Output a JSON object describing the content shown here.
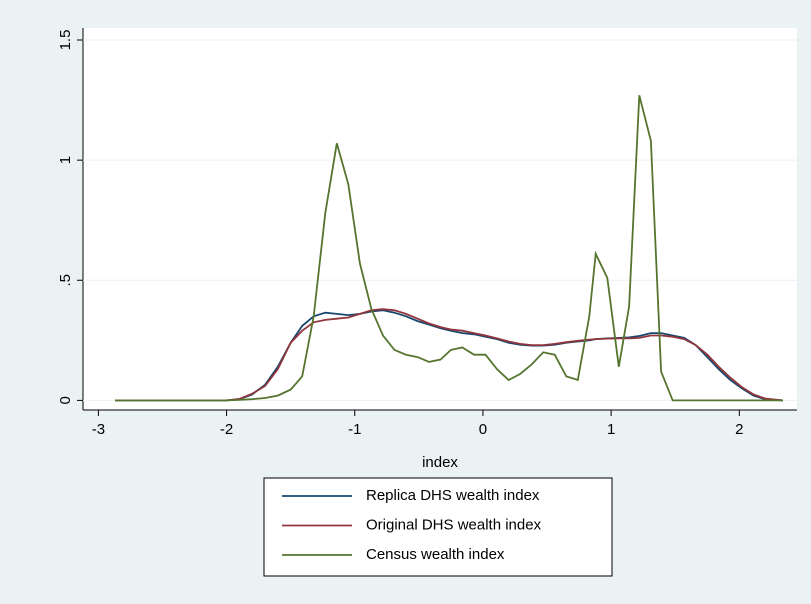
{
  "chart_data": {
    "type": "line",
    "x_label": "index",
    "x": [
      -2.87,
      -2.5,
      -2.2,
      -2.0,
      -1.9,
      -1.8,
      -1.7,
      -1.6,
      -1.5,
      -1.41,
      -1.32,
      -1.23,
      -1.14,
      -1.05,
      -0.96,
      -0.87,
      -0.78,
      -0.69,
      -0.6,
      -0.51,
      -0.42,
      -0.33,
      -0.25,
      -0.16,
      -0.07,
      0.02,
      0.11,
      0.2,
      0.29,
      0.38,
      0.47,
      0.56,
      0.65,
      0.74,
      0.83,
      0.88,
      0.97,
      1.06,
      1.14,
      1.22,
      1.31,
      1.39,
      1.48,
      1.57,
      1.66,
      1.75,
      1.84,
      1.93,
      2.02,
      2.11,
      2.2,
      2.34
    ],
    "series": [
      {
        "name": "Replica DHS wealth index",
        "color": "#1a476f",
        "values": [
          0,
          0,
          0,
          0,
          0.005,
          0.025,
          0.065,
          0.14,
          0.24,
          0.31,
          0.35,
          0.365,
          0.36,
          0.355,
          0.36,
          0.37,
          0.375,
          0.365,
          0.35,
          0.33,
          0.315,
          0.3,
          0.29,
          0.28,
          0.275,
          0.265,
          0.255,
          0.24,
          0.232,
          0.228,
          0.228,
          0.232,
          0.24,
          0.245,
          0.25,
          0.255,
          0.258,
          0.26,
          0.262,
          0.268,
          0.28,
          0.28,
          0.27,
          0.26,
          0.23,
          0.18,
          0.13,
          0.085,
          0.05,
          0.02,
          0.005,
          0
        ]
      },
      {
        "name": "Original DHS wealth index",
        "color": "#90353b",
        "values": [
          0,
          0,
          0,
          0,
          0.006,
          0.028,
          0.06,
          0.13,
          0.24,
          0.29,
          0.325,
          0.335,
          0.34,
          0.345,
          0.36,
          0.375,
          0.38,
          0.375,
          0.36,
          0.34,
          0.32,
          0.305,
          0.295,
          0.29,
          0.28,
          0.27,
          0.258,
          0.245,
          0.235,
          0.23,
          0.23,
          0.235,
          0.242,
          0.248,
          0.253,
          0.255,
          0.257,
          0.258,
          0.258,
          0.26,
          0.27,
          0.27,
          0.265,
          0.255,
          0.23,
          0.19,
          0.14,
          0.095,
          0.055,
          0.025,
          0.008,
          0
        ]
      },
      {
        "name": "Census wealth index",
        "color": "#55752f",
        "values": [
          0,
          0,
          0,
          0,
          0.002,
          0.005,
          0.01,
          0.02,
          0.045,
          0.1,
          0.35,
          0.78,
          1.07,
          0.9,
          0.57,
          0.38,
          0.27,
          0.21,
          0.19,
          0.18,
          0.16,
          0.17,
          0.21,
          0.22,
          0.19,
          0.19,
          0.13,
          0.085,
          0.11,
          0.15,
          0.2,
          0.19,
          0.1,
          0.085,
          0.35,
          0.61,
          0.51,
          0.14,
          0.39,
          1.27,
          1.08,
          0.12,
          0,
          0,
          0,
          0,
          0,
          0,
          0,
          0,
          0,
          0
        ]
      }
    ],
    "xlim": [
      -3.12,
      2.45
    ],
    "ylim": [
      -0.04,
      1.55
    ],
    "xticks": [
      -3,
      -2,
      -1,
      0,
      1,
      2
    ],
    "yticks": [
      0,
      {
        "value": 0.5,
        "label": ".5"
      },
      1,
      1.5
    ],
    "grid": true,
    "legend": "bottom"
  }
}
